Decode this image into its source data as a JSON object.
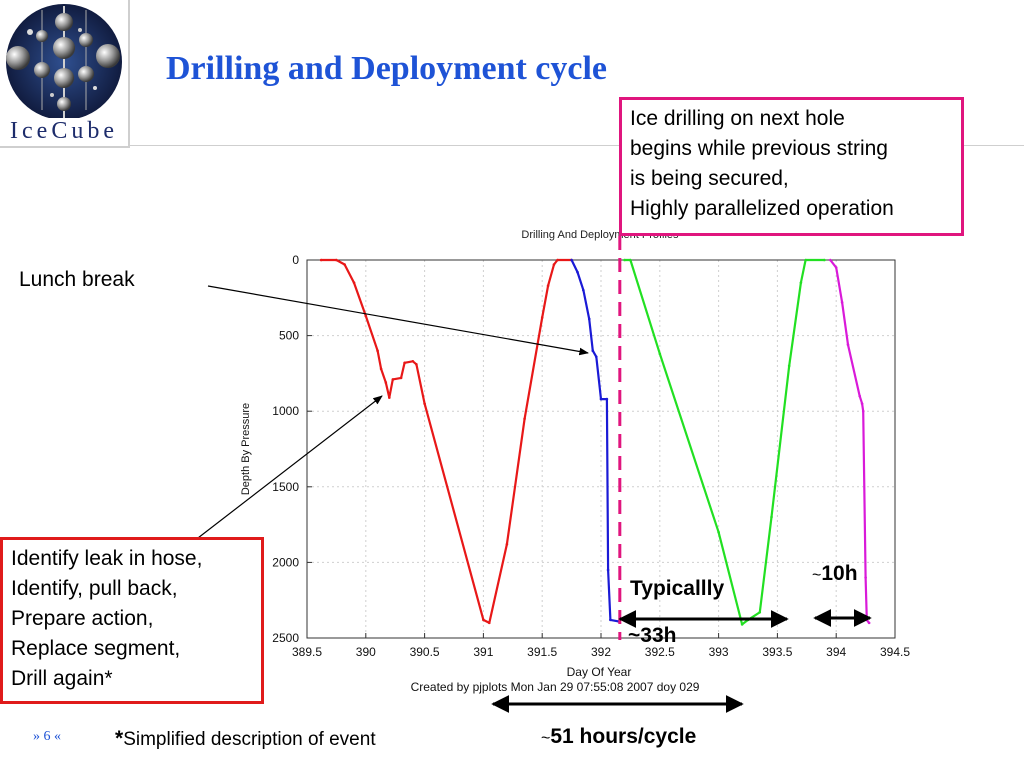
{
  "slide": {
    "title": "Drilling and Deployment cycle",
    "logo_text": "IceCube",
    "footer_page": "» 6 «",
    "footnote_star": "*",
    "footnote_text": "Simplified description of event",
    "cycle_tilde": "~",
    "cycle_text": "51 hours/cycle",
    "typical_label": "Typicallly",
    "typical_value": "~33h",
    "short_value_tilde": "~",
    "short_value": "10h",
    "lunch_label": "Lunch  break",
    "ice_box_lines": [
      "Ice drilling on next hole",
      "begins while previous string",
      "is being secured,",
      "Highly parallelized operation"
    ],
    "leak_box_lines": [
      "Identify leak in hose,",
      "Identify, pull back,",
      "Prepare action,",
      "Replace segment,",
      "Drill again*"
    ],
    "colors": {
      "title": "#1e53d6",
      "ice_box_border": "#e0157e",
      "leak_box_border": "#e01b1b",
      "arrows": "#000000"
    }
  },
  "chart_data": {
    "type": "line",
    "title": "Drilling And Deployment Profiles",
    "xlabel": "Day Of Year",
    "ylabel": "Depth By Pressure",
    "caption": "Created by pjplots Mon Jan 29 07:55:08 2007 doy 029",
    "xlim": [
      389.5,
      394.5
    ],
    "ylim": [
      2500,
      0
    ],
    "y_inverted": true,
    "x_ticks": [
      "389.5",
      "390",
      "390.5",
      "391",
      "391.5",
      "392",
      "392.5",
      "393",
      "393.5",
      "394",
      "394.5"
    ],
    "y_ticks": [
      "0",
      "500",
      "1000",
      "1500",
      "2000",
      "2500"
    ],
    "grid": true,
    "series": [
      {
        "color": "#e81818",
        "points": [
          [
            389.62,
            0
          ],
          [
            389.75,
            0
          ],
          [
            389.82,
            30
          ],
          [
            389.9,
            150
          ],
          [
            390.0,
            370
          ],
          [
            390.1,
            600
          ],
          [
            390.13,
            720
          ],
          [
            390.17,
            810
          ],
          [
            390.2,
            910
          ],
          [
            390.23,
            790
          ],
          [
            390.3,
            780
          ],
          [
            390.33,
            680
          ],
          [
            390.4,
            670
          ],
          [
            390.43,
            690
          ],
          [
            390.5,
            950
          ],
          [
            391.0,
            2380
          ],
          [
            391.05,
            2400
          ],
          [
            391.2,
            1880
          ],
          [
            391.35,
            1050
          ],
          [
            391.5,
            380
          ],
          [
            391.55,
            170
          ],
          [
            391.6,
            30
          ],
          [
            391.63,
            0
          ],
          [
            391.75,
            0
          ]
        ]
      },
      {
        "color": "#1a1ad6",
        "points": [
          [
            391.75,
            0
          ],
          [
            391.8,
            80
          ],
          [
            391.85,
            200
          ],
          [
            391.9,
            390
          ],
          [
            391.93,
            600
          ],
          [
            391.96,
            640
          ],
          [
            392.0,
            920
          ],
          [
            392.05,
            920
          ],
          [
            392.06,
            2050
          ],
          [
            392.08,
            2380
          ],
          [
            392.15,
            2390
          ]
        ]
      },
      {
        "color": "#22e022",
        "points": [
          [
            392.2,
            0
          ],
          [
            392.25,
            0
          ],
          [
            392.5,
            620
          ],
          [
            393.0,
            1800
          ],
          [
            393.2,
            2410
          ],
          [
            393.25,
            2380
          ],
          [
            393.35,
            2330
          ],
          [
            393.45,
            1700
          ],
          [
            393.6,
            700
          ],
          [
            393.7,
            150
          ],
          [
            393.74,
            0
          ],
          [
            393.9,
            0
          ]
        ]
      },
      {
        "color": "#d91ad9",
        "points": [
          [
            393.95,
            0
          ],
          [
            394.0,
            50
          ],
          [
            394.05,
            280
          ],
          [
            394.1,
            560
          ],
          [
            394.2,
            900
          ],
          [
            394.22,
            950
          ],
          [
            394.23,
            1000
          ],
          [
            394.25,
            2100
          ],
          [
            394.26,
            2380
          ],
          [
            394.28,
            2400
          ]
        ]
      }
    ],
    "marker_line": {
      "x": 392.16,
      "color": "#e0157e",
      "style": "dashed"
    },
    "annotations": [
      {
        "text": "Typicallly ~33h",
        "x_from": 392.2,
        "x_to": 393.68,
        "depth": 2350
      },
      {
        "text": "~10h",
        "x_from": 393.9,
        "x_to": 394.26,
        "depth": 2340
      },
      {
        "text": "~51 hours/cycle",
        "x_from": 391.57,
        "x_to": 393.8,
        "depth": 2930
      }
    ]
  }
}
